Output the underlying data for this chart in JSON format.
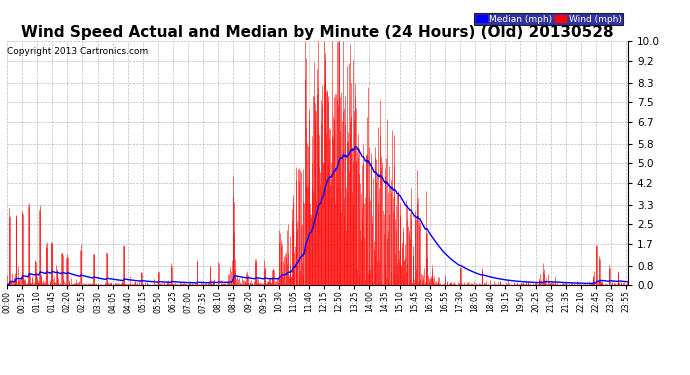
{
  "title": "Wind Speed Actual and Median by Minute (24 Hours) (Old) 20130528",
  "copyright": "Copyright 2013 Cartronics.com",
  "yticks": [
    0.0,
    0.8,
    1.7,
    2.5,
    3.3,
    4.2,
    5.0,
    5.8,
    6.7,
    7.5,
    8.3,
    9.2,
    10.0
  ],
  "ymax": 10.0,
  "ymin": 0.0,
  "background_color": "#ffffff",
  "plot_bg_color": "#ffffff",
  "grid_color": "#aaaaaa",
  "wind_color": "#ff0000",
  "median_color": "#0000ff",
  "legend_median_bg": "#0000ff",
  "legend_wind_bg": "#ff0000",
  "title_fontsize": 11,
  "copyright_fontsize": 6.5,
  "total_minutes": 1440,
  "tick_interval": 35
}
